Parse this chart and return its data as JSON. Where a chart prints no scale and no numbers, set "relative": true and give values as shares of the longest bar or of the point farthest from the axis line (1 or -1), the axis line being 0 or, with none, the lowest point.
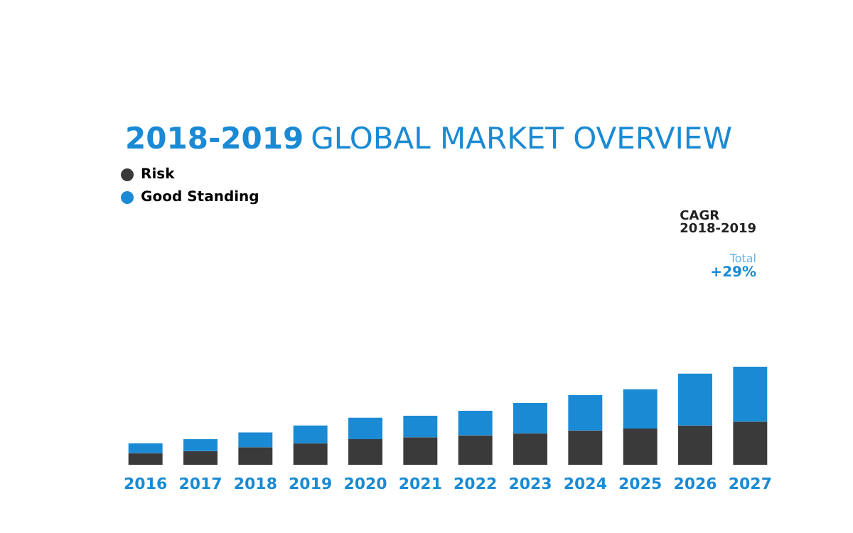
{
  "chart_data": {
    "type": "bar",
    "stacked": true,
    "relative": true,
    "title": "2018-2019 GLOBAL MARKET OVERVIEW",
    "categories": [
      "2016",
      "2017",
      "2018",
      "2019",
      "2020",
      "2021",
      "2022",
      "2023",
      "2024",
      "2025",
      "2026",
      "2027"
    ],
    "series": [
      {
        "name": "Risk",
        "color": "#3a3a3a",
        "values": [
          0.12,
          0.14,
          0.18,
          0.22,
          0.26,
          0.28,
          0.3,
          0.32,
          0.35,
          0.37,
          0.4,
          0.44
        ]
      },
      {
        "name": "Good Standing",
        "color": "#1a8ad4",
        "values": [
          0.1,
          0.12,
          0.15,
          0.18,
          0.22,
          0.22,
          0.25,
          0.31,
          0.36,
          0.4,
          0.53,
          0.56
        ]
      }
    ],
    "legend": "top left",
    "annotations": [
      "CAGR\n2018-2019",
      "Total",
      "+29%"
    ]
  }
}
